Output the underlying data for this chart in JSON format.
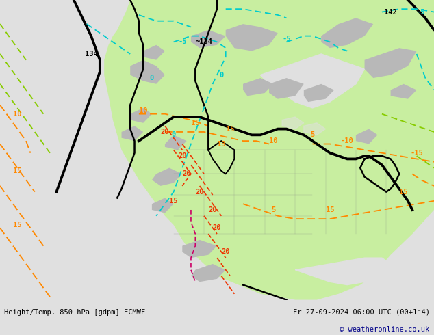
{
  "title_left": "Height/Temp. 850 hPa [gdpm] ECMWF",
  "title_right": "Fr 27-09-2024 06:00 UTC (00+1⁻4)",
  "copyright": "© weatheronline.co.uk",
  "background_color": "#e0e0e0",
  "bottom_bar_color": "#d0d0d0",
  "bottom_text_color": "#000000",
  "copyright_color": "#000088",
  "fig_width": 6.34,
  "fig_height": 4.9,
  "dpi": 100,
  "bottom_bar_height": 0.105,
  "ocean_color": "#e0e0e0",
  "land_color": "#c8eea0",
  "gray_color": "#b8b8b8",
  "border_color": "#888888"
}
